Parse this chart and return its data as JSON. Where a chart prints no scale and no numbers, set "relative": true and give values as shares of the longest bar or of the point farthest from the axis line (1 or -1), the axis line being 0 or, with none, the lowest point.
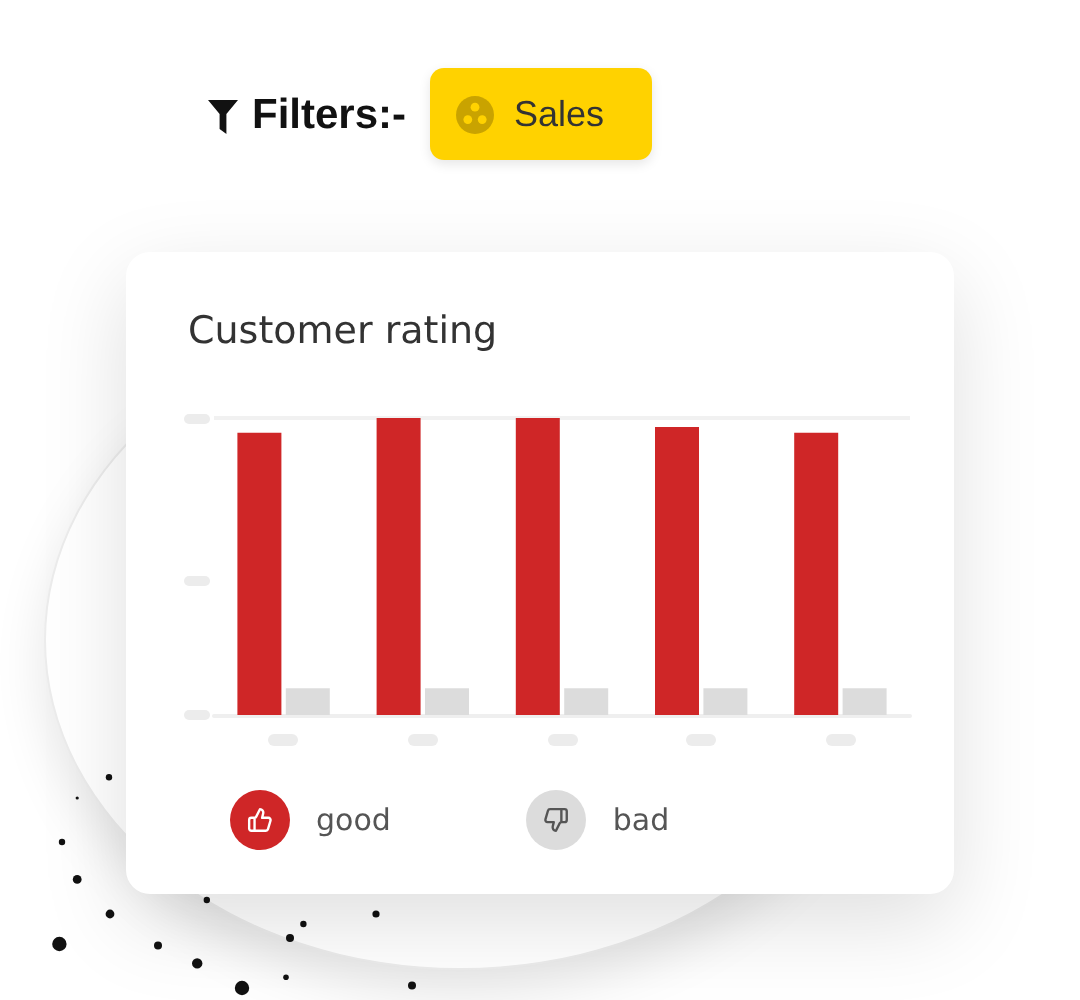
{
  "chart_data": {
    "type": "bar",
    "title": "Customer rating",
    "categories": [
      null,
      null,
      null,
      null,
      null
    ],
    "series": [
      {
        "name": "good",
        "color": "#cf2627",
        "values": [
          0.95,
          1,
          1,
          0.97,
          0.95
        ]
      },
      {
        "name": "bad",
        "color": "#dcdcdc",
        "values": [
          0.09,
          0.09,
          0.09,
          0.09,
          0.09
        ]
      }
    ],
    "relative": true,
    "grid": "y",
    "legend": "bottom left",
    "annotations": [
      "Filters:-",
      "Sales"
    ]
  }
}
